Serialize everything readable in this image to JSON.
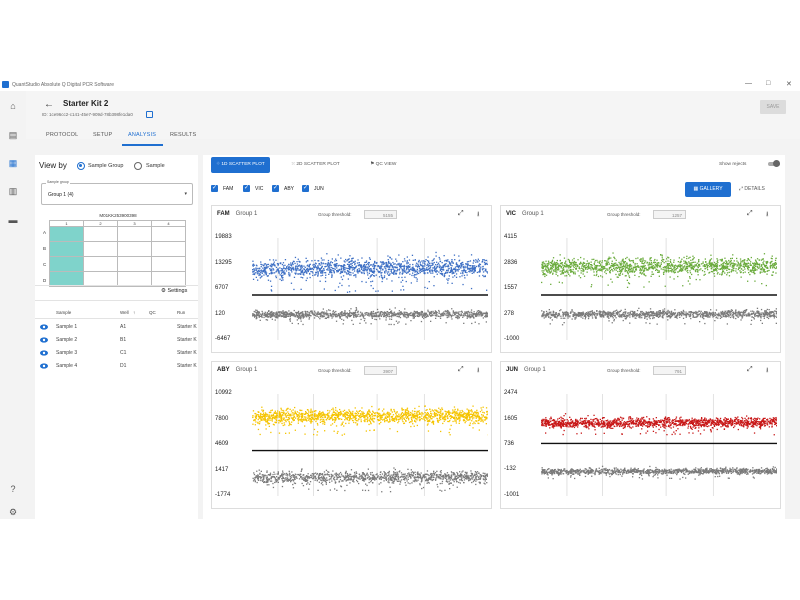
{
  "window": {
    "title": "QuantStudio Absolute Q Digital PCR Software",
    "controls": [
      "—",
      "□",
      "✕"
    ]
  },
  "rail": {
    "icons": [
      "home-icon",
      "folder-icon",
      "analysis-icon",
      "document-icon",
      "gallery-icon"
    ],
    "bottom_icons": [
      "help-icon",
      "gear-icon"
    ]
  },
  "header": {
    "title": "Starter Kit 2",
    "id": "ID: 1ce96cc2-c141-45e7-909d-78b398fe1da0",
    "save_label": "SAVE"
  },
  "tabs": [
    {
      "label": "PROTOCOL",
      "active": false
    },
    {
      "label": "SETUP",
      "active": false
    },
    {
      "label": "ANALYSIS",
      "active": true
    },
    {
      "label": "RESULTS",
      "active": false
    }
  ],
  "left": {
    "view_by_label": "View by",
    "options": [
      "Sample Group",
      "Sample"
    ],
    "selected_option": "Sample Group",
    "select": {
      "label": "Sample group",
      "value": "Group 1 (4)"
    },
    "plate": {
      "title": "M01KK253900398",
      "columns": [
        "1",
        "2",
        "3",
        "4"
      ],
      "rows": [
        "A",
        "B",
        "C",
        "D"
      ],
      "filled": [
        [
          1,
          0,
          0,
          0
        ],
        [
          1,
          0,
          0,
          0
        ],
        [
          1,
          0,
          0,
          0
        ],
        [
          1,
          0,
          0,
          0
        ]
      ]
    },
    "settings_label": "Settings",
    "table": {
      "headers": [
        "Sample",
        "Well",
        "QC",
        "Run"
      ],
      "rows": [
        {
          "sample": "Sample 1",
          "well": "A1",
          "qc": "",
          "run": "Starter K"
        },
        {
          "sample": "Sample 2",
          "well": "B1",
          "qc": "",
          "run": "Starter K"
        },
        {
          "sample": "Sample 3",
          "well": "C1",
          "qc": "",
          "run": "Starter K"
        },
        {
          "sample": "Sample 4",
          "well": "D1",
          "qc": "",
          "run": "Starter K"
        }
      ]
    }
  },
  "toolbar": {
    "plot1d": "1D SCATTER PLOT",
    "plot2d": "2D SCATTER PLOT",
    "qc": "QC VIEW",
    "show_rejects": "Show rejects",
    "gallery": "GALLERY",
    "details": "DETAILS"
  },
  "dyes": [
    "FAM",
    "VIC",
    "ABY",
    "JUN"
  ],
  "chart_data": [
    {
      "type": "scatter",
      "dye": "FAM",
      "group": "Group 1",
      "threshold_label": "Group threshold:",
      "threshold": 5155,
      "yticks": [
        19883,
        13295,
        6707,
        120,
        -6467
      ],
      "ylim": [
        -6467,
        19883
      ],
      "positive_center": 12000,
      "positive_spread": 2600,
      "negative_center": 200,
      "negative_spread": 1100,
      "color": "#3d6fc4"
    },
    {
      "type": "scatter",
      "dye": "VIC",
      "group": "Group 1",
      "threshold_label": "Group threshold:",
      "threshold": 1257,
      "yticks": [
        4115,
        2836,
        1557,
        278,
        -1000
      ],
      "ylim": [
        -1000,
        4115
      ],
      "positive_center": 2700,
      "positive_spread": 450,
      "negative_center": 300,
      "negative_spread": 220,
      "color": "#6aab3c"
    },
    {
      "type": "scatter",
      "dye": "ABY",
      "group": "Group 1",
      "threshold_label": "Group threshold:",
      "threshold": 3907,
      "yticks": [
        10992,
        7800,
        4609,
        1417,
        -1774
      ],
      "ylim": [
        -1774,
        10992
      ],
      "positive_center": 8200,
      "positive_spread": 1000,
      "negative_center": 600,
      "negative_spread": 800,
      "color": "#f5c400"
    },
    {
      "type": "scatter",
      "dye": "JUN",
      "group": "Group 1",
      "threshold_label": "Group threshold:",
      "threshold": 791,
      "yticks": [
        2474,
        1605,
        736,
        -132,
        -1001
      ],
      "ylim": [
        -1001,
        2474
      ],
      "positive_center": 1500,
      "positive_spread": 180,
      "negative_center": -150,
      "negative_spread": 110,
      "color": "#c81818"
    }
  ]
}
